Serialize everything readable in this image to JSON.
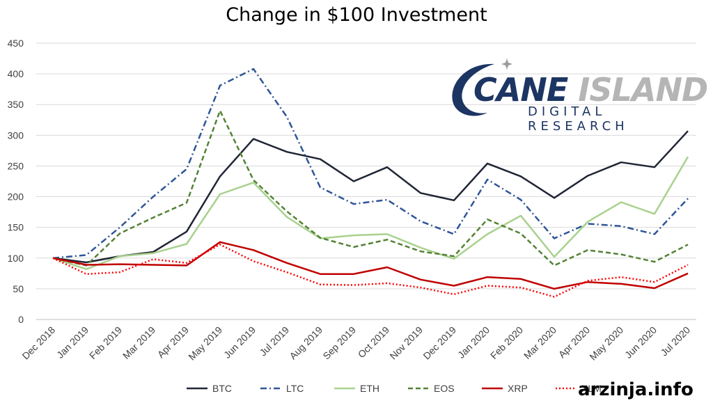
{
  "chart_data": {
    "type": "line",
    "title": "Change in $100 Investment",
    "xlabel": "",
    "ylabel": "",
    "ylim": [
      0,
      450
    ],
    "yticks": [
      0,
      50,
      100,
      150,
      200,
      250,
      300,
      350,
      400,
      450
    ],
    "grid": true,
    "legend_position": "bottom",
    "categories": [
      "Dec 2018",
      "Jan 2019",
      "Feb 2019",
      "Mar 2019",
      "Apr 2019",
      "May 2019",
      "Jun 2019",
      "Jul 2019",
      "Aug 2019",
      "Sep 2019",
      "Oct 2019",
      "Nov 2019",
      "Dec 2019",
      "Jan 2020",
      "Feb 2020",
      "Mar 2020",
      "Apr 2020",
      "May 2020",
      "Jun 2020",
      "Jul 2020"
    ],
    "series": [
      {
        "name": "BTC",
        "color": "#1f2535",
        "dash": "solid",
        "values": [
          100,
          93,
          103,
          110,
          143,
          233,
          294,
          273,
          261,
          225,
          248,
          206,
          194,
          254,
          233,
          198,
          234,
          256,
          248,
          307
        ]
      },
      {
        "name": "LTC",
        "color": "#2f5597",
        "dash": "dashdot",
        "values": [
          100,
          105,
          150,
          200,
          245,
          381,
          408,
          330,
          215,
          188,
          195,
          160,
          139,
          228,
          195,
          132,
          156,
          152,
          139,
          197
        ]
      },
      {
        "name": "ETH",
        "color": "#a9d18e",
        "dash": "solid",
        "values": [
          100,
          82,
          103,
          108,
          123,
          204,
          223,
          167,
          132,
          137,
          139,
          117,
          99,
          139,
          169,
          102,
          159,
          191,
          172,
          265
        ]
      },
      {
        "name": "EOS",
        "color": "#548235",
        "dash": "dash",
        "values": [
          100,
          88,
          140,
          166,
          190,
          340,
          227,
          176,
          133,
          118,
          130,
          111,
          103,
          163,
          140,
          88,
          113,
          106,
          94,
          122
        ]
      },
      {
        "name": "XRP",
        "color": "#c00000",
        "dash": "solid",
        "values": [
          100,
          89,
          90,
          89,
          88,
          126,
          113,
          92,
          74,
          74,
          85,
          65,
          55,
          69,
          66,
          50,
          61,
          58,
          51,
          75
        ]
      },
      {
        "name": "XLM",
        "color": "#ff0000",
        "dash": "dot",
        "values": [
          100,
          74,
          77,
          98,
          92,
          122,
          95,
          77,
          57,
          56,
          59,
          52,
          41,
          55,
          52,
          37,
          63,
          69,
          61,
          89
        ]
      }
    ]
  },
  "logo": {
    "word1": "CANE",
    "word2": "ISLAND",
    "sub": "DIGITAL RESEARCH"
  },
  "watermark": "arzinja.info"
}
